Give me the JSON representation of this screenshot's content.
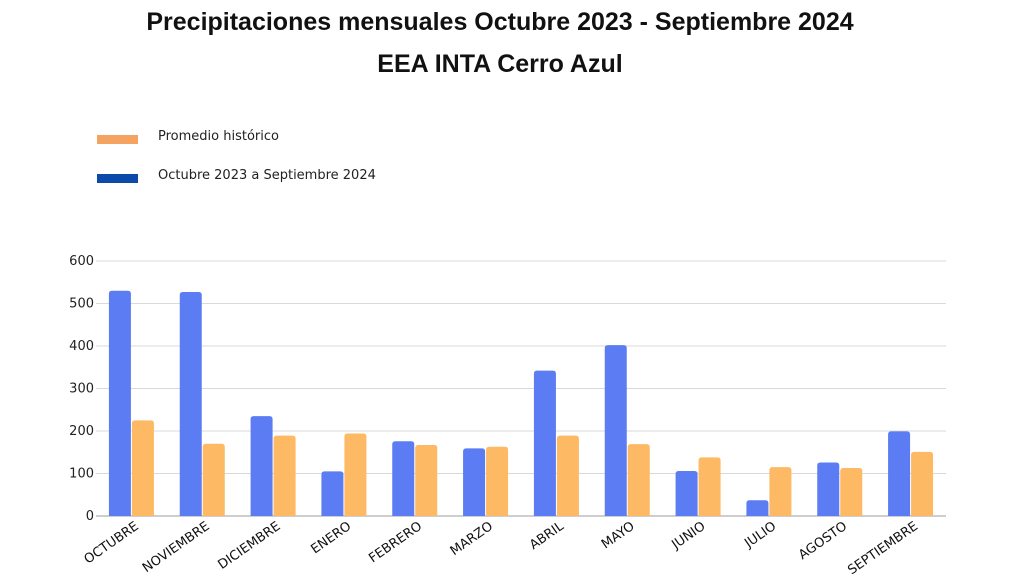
{
  "chart_data": {
    "type": "bar",
    "title": "Precipitaciones mensuales Octubre 2023 - Septiembre 2024",
    "subtitle": "EEA INTA Cerro Azul",
    "categories": [
      "OCTUBRE",
      "NOVIEMBRE",
      "DICIEMBRE",
      "ENERO",
      "FEBRERO",
      "MARZO",
      "ABRIL",
      "MAYO",
      "JUNIO",
      "JULIO",
      "AGOSTO",
      "SEPTIEMBRE"
    ],
    "series": [
      {
        "name": "Octubre 2023 a Septiembre 2024",
        "color": "#5b7cf2",
        "values": [
          530,
          527,
          235,
          105,
          176,
          159,
          342,
          402,
          106,
          37,
          126,
          199
        ]
      },
      {
        "name": "Promedio histórico",
        "color": "#fdb963",
        "values": [
          225,
          170,
          189,
          194,
          167,
          163,
          189,
          169,
          138,
          115,
          113,
          151
        ]
      }
    ],
    "legend": [
      {
        "label": "Promedio histórico",
        "color": "#f4a460"
      },
      {
        "label": "Octubre 2023 a Septiembre 2024",
        "color": "#0b4aa8"
      }
    ],
    "yticks": [
      "600",
      "500",
      "400",
      "300",
      "200",
      "100",
      "0"
    ],
    "ylim": [
      0,
      600
    ],
    "grid": true,
    "legend_position": "top-left",
    "xlabel": "",
    "ylabel": ""
  }
}
